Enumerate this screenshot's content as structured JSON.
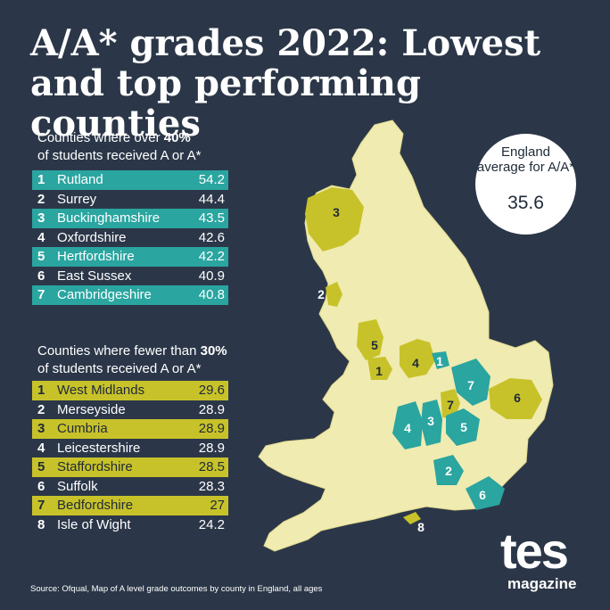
{
  "title": "A/A* grades 2022: Lowest and top performing counties",
  "top_section": {
    "intro_prefix": "Counties where over ",
    "intro_threshold": "40%",
    "intro_suffix": "of students received A or A*",
    "rows": [
      {
        "rank": "1",
        "name": "Rutland",
        "value": "54.2"
      },
      {
        "rank": "2",
        "name": "Surrey",
        "value": "44.4"
      },
      {
        "rank": "3",
        "name": "Buckinghamshire",
        "value": "43.5"
      },
      {
        "rank": "4",
        "name": "Oxfordshire",
        "value": "42.6"
      },
      {
        "rank": "5",
        "name": "Hertfordshire",
        "value": "42.2"
      },
      {
        "rank": "6",
        "name": "East Sussex",
        "value": "40.9"
      },
      {
        "rank": "7",
        "name": "Cambridgeshire",
        "value": "40.8"
      }
    ]
  },
  "low_section": {
    "intro_prefix": "Counties where fewer than ",
    "intro_threshold": "30%",
    "intro_suffix": "of students received A or A*",
    "rows": [
      {
        "rank": "1",
        "name": "West Midlands",
        "value": "29.6"
      },
      {
        "rank": "2",
        "name": "Merseyside",
        "value": "28.9"
      },
      {
        "rank": "3",
        "name": "Cumbria",
        "value": "28.9"
      },
      {
        "rank": "4",
        "name": "Leicestershire",
        "value": "28.9"
      },
      {
        "rank": "5",
        "name": "Staffordshire",
        "value": "28.5"
      },
      {
        "rank": "6",
        "name": "Suffolk",
        "value": "28.3"
      },
      {
        "rank": "7",
        "name": "Bedfordshire",
        "value": "27"
      },
      {
        "rank": "8",
        "name": "Isle of Wight",
        "value": "24.2"
      }
    ]
  },
  "average": {
    "label": "England average for A/A*",
    "value": "35.6"
  },
  "map": {
    "top_markers": [
      "1",
      "2",
      "3",
      "4",
      "5",
      "6",
      "7"
    ],
    "low_markers": [
      "1",
      "2",
      "3",
      "4",
      "5",
      "6",
      "7",
      "8"
    ]
  },
  "source": "Source: Ofqual, Map of A level grade outcomes by county in England, all ages",
  "logo": {
    "wordmark": "tes",
    "sub": "magazine"
  },
  "colors": {
    "background": "#2b3748",
    "land": "#f0ebb0",
    "top": "#2aa5a0",
    "low": "#c8c22a"
  }
}
